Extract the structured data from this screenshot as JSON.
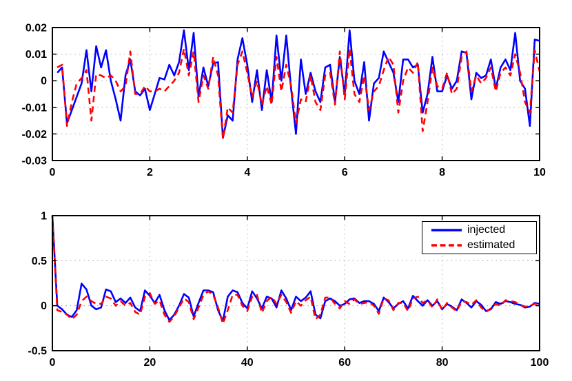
{
  "figure": {
    "background": "#ffffff",
    "axes_color": "#000000",
    "grid_color": "#aaaaaa",
    "grid_style": "dotted",
    "tick_label_color": "#000000"
  },
  "legend": {
    "position": "top-right-of-bottom-panel",
    "entries": [
      {
        "label": "injected",
        "color": "#0000ff",
        "line_style": "solid"
      },
      {
        "label": "estimated",
        "color": "#ff0000",
        "line_style": "dashed"
      }
    ]
  },
  "chart_data": [
    {
      "type": "line",
      "panel": "top",
      "title": "",
      "xlabel": "",
      "ylabel": "",
      "xlim": [
        0,
        10
      ],
      "ylim": [
        -0.03,
        0.02
      ],
      "xticks": [
        0,
        2,
        4,
        6,
        8,
        10
      ],
      "yticks": [
        -0.03,
        -0.02,
        -0.01,
        0,
        0.01,
        0.02
      ],
      "grid": true,
      "legend_shown": false,
      "x_start": 0.1,
      "x_step": 0.1,
      "series": [
        {
          "name": "injected",
          "color": "#0000ff",
          "style": "solid",
          "values": [
            0.003,
            0.005,
            -0.016,
            -0.011,
            -0.006,
            -0.001,
            0.0115,
            -0.004,
            0.013,
            0.005,
            0.0115,
            0.0,
            -0.007,
            -0.015,
            0.002,
            0.008,
            -0.004,
            -0.0055,
            -0.003,
            -0.011,
            -0.005,
            0.001,
            0.0005,
            0.006,
            0.002,
            0.007,
            0.019,
            0.004,
            0.018,
            -0.006,
            0.005,
            -0.002,
            0.0065,
            0.007,
            -0.0215,
            -0.013,
            -0.015,
            0.008,
            0.016,
            0.006,
            -0.008,
            0.004,
            -0.011,
            0.004,
            -0.008,
            0.017,
            0.0,
            0.017,
            -0.003,
            -0.02,
            0.008,
            -0.005,
            0.003,
            -0.004,
            -0.008,
            0.005,
            0.006,
            -0.008,
            0.009,
            -0.005,
            0.019,
            0.0,
            -0.005,
            0.007,
            -0.015,
            -0.001,
            0.001,
            0.011,
            0.007,
            0.003,
            -0.008,
            0.008,
            0.008,
            0.005,
            0.006,
            -0.012,
            -0.005,
            0.009,
            -0.004,
            -0.004,
            0.002,
            -0.003,
            0.0,
            0.011,
            0.0105,
            -0.007,
            0.003,
            0.001,
            0.002,
            0.008,
            -0.003,
            0.005,
            0.008,
            0.004,
            0.018,
            0.0,
            -0.003,
            -0.017,
            0.0155,
            0.015
          ]
        },
        {
          "name": "estimated",
          "color": "#ff0000",
          "style": "dashed",
          "values": [
            0.005,
            0.006,
            -0.017,
            -0.008,
            -0.001,
            0.001,
            0.004,
            -0.015,
            0.0025,
            0.002,
            0.001,
            0.002,
            0.0,
            -0.004,
            -0.002,
            0.011,
            -0.005,
            -0.005,
            -0.002,
            -0.004,
            -0.004,
            -0.003,
            -0.004,
            -0.002,
            0.0,
            0.003,
            0.012,
            0.002,
            0.011,
            -0.008,
            0.002,
            -0.003,
            0.009,
            0.002,
            -0.022,
            -0.01,
            -0.012,
            0.006,
            0.011,
            0.003,
            -0.006,
            0.0,
            -0.009,
            -0.002,
            -0.009,
            0.009,
            -0.004,
            0.006,
            -0.002,
            -0.016,
            -0.007,
            -0.008,
            0.002,
            -0.008,
            -0.011,
            0.002,
            0.003,
            -0.009,
            0.011,
            -0.007,
            0.012,
            -0.005,
            -0.008,
            0.002,
            -0.011,
            -0.004,
            -0.002,
            0.004,
            0.009,
            0.006,
            -0.012,
            0.0,
            0.005,
            0.003,
            0.007,
            -0.019,
            -0.008,
            0.005,
            -0.002,
            -0.003,
            0.003,
            -0.005,
            -0.003,
            0.009,
            0.011,
            -0.004,
            0.002,
            -0.001,
            0.001,
            0.005,
            -0.004,
            0.003,
            0.005,
            0.002,
            0.01,
            0.003,
            -0.008,
            -0.012,
            0.0115,
            0.0035
          ]
        }
      ]
    },
    {
      "type": "line",
      "panel": "bottom",
      "title": "",
      "xlabel": "",
      "ylabel": "",
      "xlim": [
        0,
        100
      ],
      "ylim": [
        -0.5,
        1
      ],
      "xticks": [
        0,
        20,
        40,
        60,
        80,
        100
      ],
      "yticks": [
        -0.5,
        0,
        0.5,
        1
      ],
      "grid": true,
      "legend_shown": true,
      "x_start": 0,
      "x_step": 1,
      "series": [
        {
          "name": "injected",
          "color": "#0000ff",
          "style": "solid",
          "values": [
            1.0,
            0.0,
            -0.04,
            -0.1,
            -0.125,
            -0.05,
            0.245,
            0.18,
            0.0,
            -0.04,
            -0.02,
            0.18,
            0.16,
            0.04,
            0.08,
            0.03,
            0.09,
            -0.02,
            -0.06,
            0.17,
            0.11,
            0.03,
            0.12,
            -0.05,
            -0.16,
            -0.1,
            0.0,
            0.13,
            0.09,
            -0.12,
            0.03,
            0.17,
            0.17,
            0.15,
            -0.05,
            -0.17,
            0.1,
            0.17,
            0.15,
            0.03,
            -0.03,
            0.16,
            0.08,
            -0.03,
            0.1,
            0.08,
            -0.02,
            0.17,
            0.08,
            -0.05,
            0.1,
            0.05,
            0.09,
            0.16,
            -0.1,
            -0.14,
            0.05,
            0.08,
            0.05,
            0.0,
            0.02,
            0.07,
            0.08,
            0.03,
            0.05,
            0.05,
            0.02,
            -0.06,
            0.09,
            0.04,
            -0.03,
            0.02,
            0.05,
            -0.03,
            0.11,
            0.05,
            0.0,
            0.06,
            0.0,
            0.05,
            -0.04,
            0.02,
            -0.01,
            -0.05,
            0.07,
            0.03,
            -0.02,
            0.05,
            0.01,
            -0.06,
            -0.04,
            0.04,
            0.02,
            0.05,
            0.04,
            0.02,
            0.01,
            -0.02,
            -0.01,
            0.03,
            0.02
          ]
        },
        {
          "name": "estimated",
          "color": "#ff0000",
          "style": "dashed",
          "values": [
            1.0,
            -0.05,
            -0.07,
            -0.1,
            -0.15,
            -0.1,
            0.05,
            0.1,
            0.05,
            0.02,
            0.02,
            0.1,
            0.08,
            0.0,
            0.05,
            0.0,
            0.03,
            -0.07,
            -0.1,
            0.1,
            0.14,
            0.02,
            0.06,
            -0.1,
            -0.18,
            -0.12,
            -0.02,
            0.08,
            0.04,
            -0.15,
            -0.02,
            0.12,
            0.16,
            0.12,
            -0.02,
            -0.2,
            -0.05,
            0.12,
            0.12,
            0.0,
            -0.06,
            0.1,
            0.12,
            -0.08,
            0.05,
            0.1,
            0.02,
            0.12,
            0.04,
            -0.08,
            0.05,
            0.0,
            0.06,
            0.1,
            -0.15,
            -0.1,
            0.09,
            0.09,
            0.02,
            -0.03,
            0.05,
            0.02,
            0.07,
            0.02,
            0.03,
            0.04,
            0.0,
            -0.09,
            0.08,
            0.06,
            -0.05,
            0.03,
            0.03,
            -0.06,
            0.08,
            0.1,
            0.03,
            0.06,
            -0.02,
            0.07,
            -0.05,
            0.03,
            -0.02,
            -0.06,
            0.05,
            0.04,
            0.01,
            0.06,
            -0.02,
            -0.07,
            -0.03,
            0.02,
            0.0,
            0.06,
            0.05,
            0.04,
            0.01,
            -0.01,
            0.0,
            0.02,
            0.01
          ]
        }
      ]
    }
  ]
}
